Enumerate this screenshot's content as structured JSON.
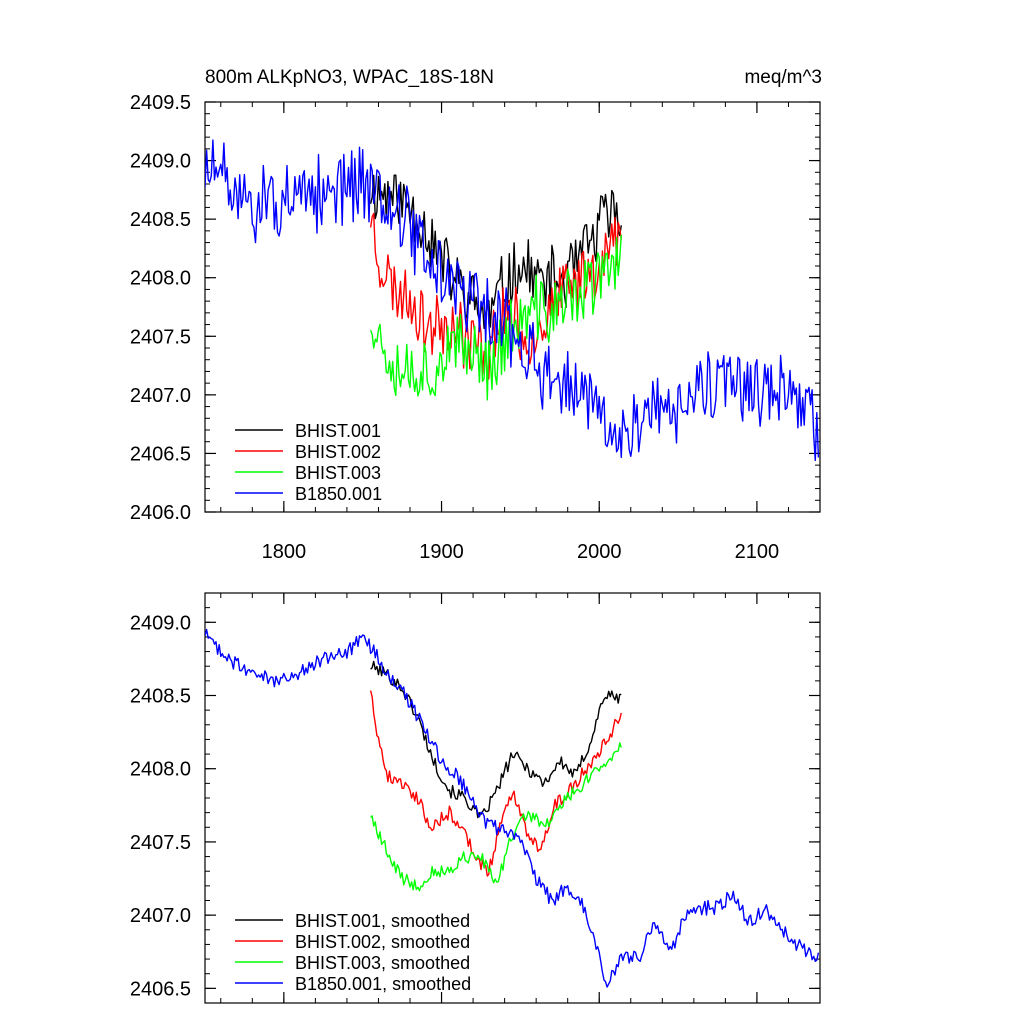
{
  "chart_data": [
    {
      "type": "line",
      "title_left": "800m ALKpNO3, WPAC_18S-18N",
      "title_right": "meq/m^3",
      "xlim": [
        1750,
        2140
      ],
      "ylim": [
        2406.0,
        2409.5
      ],
      "xticks": [
        1800,
        1900,
        2000,
        2100
      ],
      "xtick_labels": [
        "1800",
        "1900",
        "2000",
        "2100"
      ],
      "yticks": [
        2406.0,
        2406.5,
        2407.0,
        2407.5,
        2408.0,
        2408.5,
        2409.0,
        2409.5
      ],
      "ytick_labels": [
        "2406.0",
        "2406.5",
        "2407.0",
        "2407.5",
        "2408.0",
        "2408.5",
        "2409.0",
        "2409.5"
      ],
      "legend_position": "bottom-left",
      "series": [
        {
          "name": "BHIST.001",
          "color": "#000000",
          "x_start": 1855,
          "x_end": 2014,
          "knots": [
            [
              1855,
              2408.75
            ],
            [
              1870,
              2408.7
            ],
            [
              1885,
              2408.55
            ],
            [
              1900,
              2408.15
            ],
            [
              1915,
              2407.85
            ],
            [
              1930,
              2407.65
            ],
            [
              1940,
              2407.95
            ],
            [
              1950,
              2408.1
            ],
            [
              1965,
              2407.95
            ],
            [
              1980,
              2408.0
            ],
            [
              1995,
              2408.3
            ],
            [
              2005,
              2408.55
            ],
            [
              2014,
              2408.5
            ]
          ],
          "noise": 0.32,
          "seed": 11
        },
        {
          "name": "BHIST.002",
          "color": "#ff0000",
          "x_start": 1855,
          "x_end": 2014,
          "knots": [
            [
              1855,
              2408.55
            ],
            [
              1862,
              2408.1
            ],
            [
              1870,
              2407.9
            ],
            [
              1880,
              2407.85
            ],
            [
              1890,
              2407.6
            ],
            [
              1905,
              2407.65
            ],
            [
              1920,
              2407.45
            ],
            [
              1930,
              2407.35
            ],
            [
              1940,
              2407.75
            ],
            [
              1955,
              2407.45
            ],
            [
              1970,
              2407.75
            ],
            [
              1985,
              2407.95
            ],
            [
              2000,
              2408.15
            ],
            [
              2014,
              2408.35
            ]
          ],
          "noise": 0.32,
          "seed": 23
        },
        {
          "name": "BHIST.003",
          "color": "#00ff00",
          "x_start": 1855,
          "x_end": 2014,
          "knots": [
            [
              1855,
              2407.7
            ],
            [
              1862,
              2407.45
            ],
            [
              1875,
              2407.25
            ],
            [
              1890,
              2407.2
            ],
            [
              1905,
              2407.35
            ],
            [
              1920,
              2407.4
            ],
            [
              1930,
              2407.25
            ],
            [
              1945,
              2407.55
            ],
            [
              1960,
              2407.7
            ],
            [
              1975,
              2407.75
            ],
            [
              1990,
              2407.9
            ],
            [
              2005,
              2408.05
            ],
            [
              2014,
              2408.15
            ]
          ],
          "noise": 0.35,
          "seed": 37
        },
        {
          "name": "B1850.001",
          "color": "#0000ff",
          "x_start": 1750,
          "x_end": 2139,
          "knots": [
            [
              1750,
              2408.95
            ],
            [
              1770,
              2408.7
            ],
            [
              1790,
              2408.6
            ],
            [
              1810,
              2408.6
            ],
            [
              1830,
              2408.75
            ],
            [
              1850,
              2408.85
            ],
            [
              1860,
              2408.75
            ],
            [
              1875,
              2408.55
            ],
            [
              1890,
              2408.2
            ],
            [
              1905,
              2407.95
            ],
            [
              1920,
              2407.8
            ],
            [
              1935,
              2407.6
            ],
            [
              1950,
              2407.5
            ],
            [
              1965,
              2407.2
            ],
            [
              1980,
              2407.1
            ],
            [
              1995,
              2406.95
            ],
            [
              2005,
              2406.6
            ],
            [
              2020,
              2406.75
            ],
            [
              2035,
              2406.9
            ],
            [
              2050,
              2406.85
            ],
            [
              2065,
              2407.0
            ],
            [
              2085,
              2407.1
            ],
            [
              2100,
              2406.95
            ],
            [
              2115,
              2407.05
            ],
            [
              2139,
              2406.75
            ]
          ],
          "noise": 0.38,
          "seed": 51
        }
      ]
    },
    {
      "type": "line",
      "xlim": [
        1750,
        2140
      ],
      "ylim": [
        2406.4,
        2409.2
      ],
      "xticks": [
        1800,
        1900,
        2000,
        2100
      ],
      "yticks": [
        2406.5,
        2407.0,
        2407.5,
        2408.0,
        2408.5,
        2409.0
      ],
      "ytick_labels": [
        "2406.5",
        "2407.0",
        "2407.5",
        "2408.0",
        "2408.5",
        "2409.0"
      ],
      "legend_position": "bottom-left",
      "series": [
        {
          "name": "BHIST.001, smoothed",
          "color": "#000000",
          "x_start": 1855,
          "x_end": 2014,
          "knots": [
            [
              1855,
              2408.7
            ],
            [
              1865,
              2408.65
            ],
            [
              1875,
              2408.55
            ],
            [
              1885,
              2408.35
            ],
            [
              1895,
              2408.05
            ],
            [
              1905,
              2407.85
            ],
            [
              1915,
              2407.8
            ],
            [
              1925,
              2407.65
            ],
            [
              1935,
              2407.85
            ],
            [
              1945,
              2408.1
            ],
            [
              1955,
              2408.0
            ],
            [
              1965,
              2407.9
            ],
            [
              1975,
              2408.05
            ],
            [
              1985,
              2407.95
            ],
            [
              1995,
              2408.2
            ],
            [
              2003,
              2408.5
            ],
            [
              2014,
              2408.48
            ]
          ],
          "noise": 0.045,
          "seed": 101
        },
        {
          "name": "BHIST.002, smoothed",
          "color": "#ff0000",
          "x_start": 1855,
          "x_end": 2014,
          "knots": [
            [
              1855,
              2408.55
            ],
            [
              1860,
              2408.2
            ],
            [
              1866,
              2407.95
            ],
            [
              1875,
              2407.9
            ],
            [
              1885,
              2407.8
            ],
            [
              1893,
              2407.6
            ],
            [
              1905,
              2407.7
            ],
            [
              1915,
              2407.55
            ],
            [
              1925,
              2407.35
            ],
            [
              1930,
              2407.3
            ],
            [
              1937,
              2407.6
            ],
            [
              1945,
              2407.85
            ],
            [
              1955,
              2407.55
            ],
            [
              1962,
              2407.45
            ],
            [
              1972,
              2407.75
            ],
            [
              1985,
              2407.9
            ],
            [
              1995,
              2408.05
            ],
            [
              2005,
              2408.2
            ],
            [
              2014,
              2408.38
            ]
          ],
          "noise": 0.045,
          "seed": 202
        },
        {
          "name": "BHIST.003, smoothed",
          "color": "#00ff00",
          "x_start": 1855,
          "x_end": 2014,
          "knots": [
            [
              1855,
              2407.68
            ],
            [
              1860,
              2407.55
            ],
            [
              1867,
              2407.4
            ],
            [
              1875,
              2407.25
            ],
            [
              1885,
              2407.2
            ],
            [
              1895,
              2407.3
            ],
            [
              1905,
              2407.3
            ],
            [
              1915,
              2407.4
            ],
            [
              1925,
              2407.4
            ],
            [
              1935,
              2407.2
            ],
            [
              1945,
              2407.55
            ],
            [
              1955,
              2407.7
            ],
            [
              1965,
              2407.6
            ],
            [
              1975,
              2407.75
            ],
            [
              1985,
              2407.85
            ],
            [
              1995,
              2407.95
            ],
            [
              2005,
              2408.05
            ],
            [
              2014,
              2408.17
            ]
          ],
          "noise": 0.045,
          "seed": 303
        },
        {
          "name": "B1850.001, smoothed",
          "color": "#0000ff",
          "x_start": 1750,
          "x_end": 2139,
          "knots": [
            [
              1750,
              2408.92
            ],
            [
              1765,
              2408.75
            ],
            [
              1780,
              2408.65
            ],
            [
              1795,
              2408.6
            ],
            [
              1810,
              2408.65
            ],
            [
              1825,
              2408.75
            ],
            [
              1840,
              2408.8
            ],
            [
              1850,
              2408.9
            ],
            [
              1860,
              2408.75
            ],
            [
              1870,
              2408.6
            ],
            [
              1880,
              2408.45
            ],
            [
              1890,
              2408.25
            ],
            [
              1900,
              2408.05
            ],
            [
              1910,
              2407.95
            ],
            [
              1920,
              2407.8
            ],
            [
              1930,
              2407.6
            ],
            [
              1940,
              2407.6
            ],
            [
              1950,
              2407.5
            ],
            [
              1960,
              2407.25
            ],
            [
              1970,
              2407.1
            ],
            [
              1980,
              2407.2
            ],
            [
              1990,
              2407.05
            ],
            [
              2000,
              2406.7
            ],
            [
              2005,
              2406.52
            ],
            [
              2015,
              2406.72
            ],
            [
              2025,
              2406.7
            ],
            [
              2035,
              2406.95
            ],
            [
              2045,
              2406.75
            ],
            [
              2055,
              2407.0
            ],
            [
              2065,
              2407.05
            ],
            [
              2075,
              2407.05
            ],
            [
              2085,
              2407.15
            ],
            [
              2095,
              2406.95
            ],
            [
              2105,
              2407.05
            ],
            [
              2115,
              2406.9
            ],
            [
              2125,
              2406.8
            ],
            [
              2139,
              2406.7
            ]
          ],
          "noise": 0.05,
          "seed": 404
        }
      ]
    }
  ]
}
